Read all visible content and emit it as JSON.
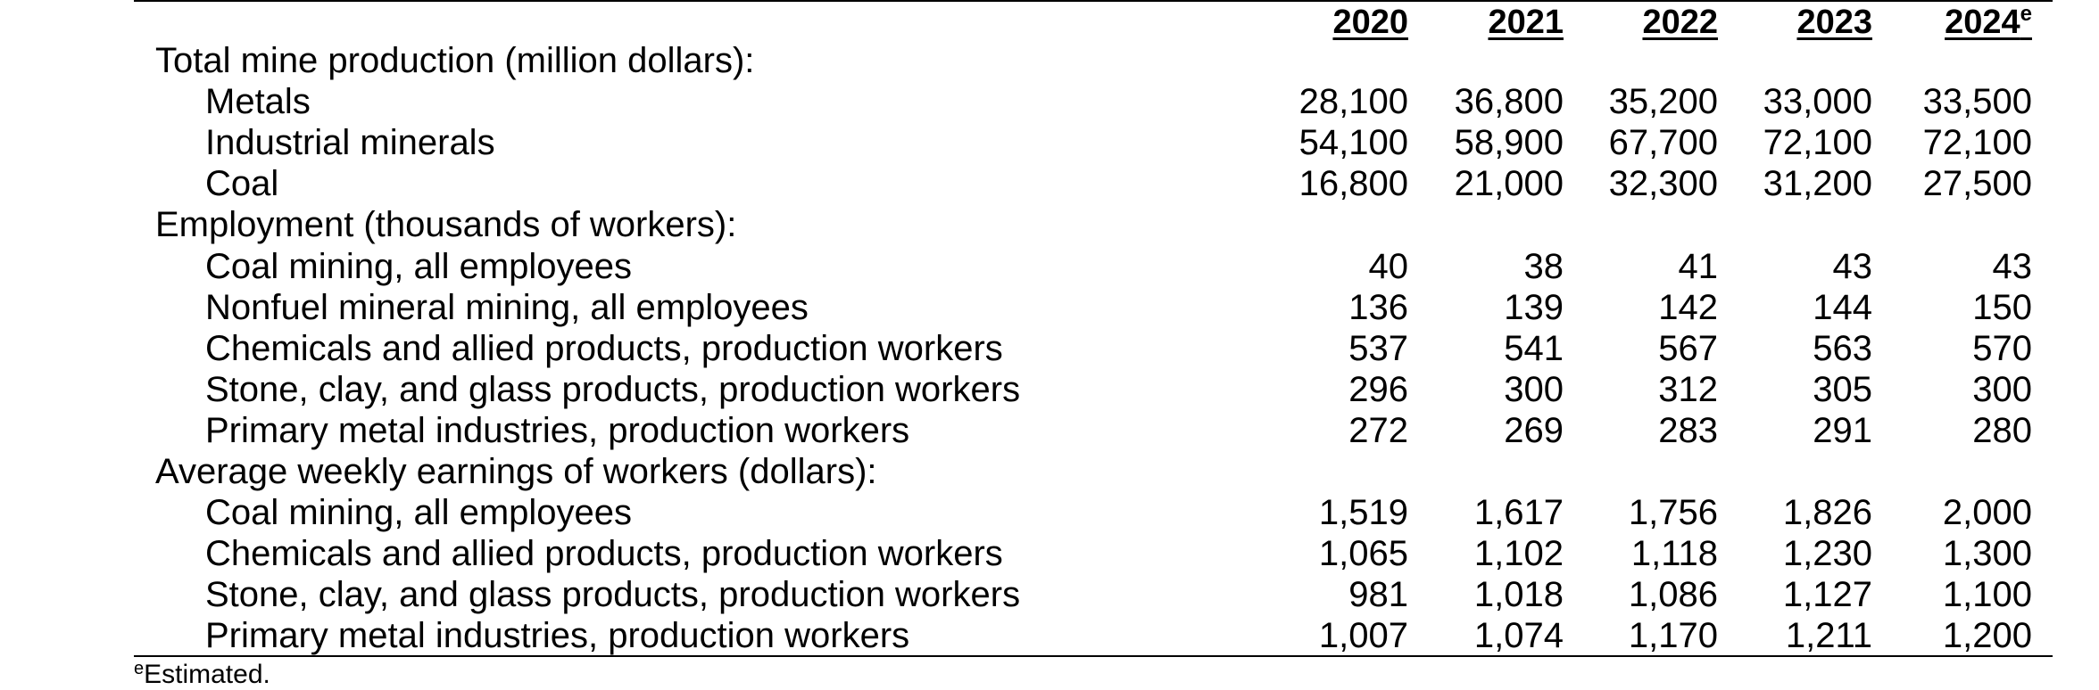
{
  "table": {
    "columns": [
      {
        "label": "2020",
        "sup": ""
      },
      {
        "label": "2021",
        "sup": ""
      },
      {
        "label": "2022",
        "sup": ""
      },
      {
        "label": "2023",
        "sup": ""
      },
      {
        "label": "2024",
        "sup": "e"
      }
    ],
    "rows": [
      {
        "kind": "section",
        "label": "Total mine production (million dollars):",
        "values": []
      },
      {
        "kind": "item",
        "label": "Metals",
        "values": [
          "28,100",
          "36,800",
          "35,200",
          "33,000",
          "33,500"
        ]
      },
      {
        "kind": "item",
        "label": "Industrial minerals",
        "values": [
          "54,100",
          "58,900",
          "67,700",
          "72,100",
          "72,100"
        ]
      },
      {
        "kind": "item",
        "label": "Coal",
        "values": [
          "16,800",
          "21,000",
          "32,300",
          "31,200",
          "27,500"
        ]
      },
      {
        "kind": "section",
        "label": "Employment (thousands of workers):",
        "values": []
      },
      {
        "kind": "item",
        "label": "Coal mining, all employees",
        "values": [
          "40",
          "38",
          "41",
          "43",
          "43"
        ]
      },
      {
        "kind": "item",
        "label": "Nonfuel mineral mining, all employees",
        "values": [
          "136",
          "139",
          "142",
          "144",
          "150"
        ]
      },
      {
        "kind": "item",
        "label": "Chemicals and allied products, production workers",
        "values": [
          "537",
          "541",
          "567",
          "563",
          "570"
        ]
      },
      {
        "kind": "item",
        "label": "Stone, clay, and glass products, production workers",
        "values": [
          "296",
          "300",
          "312",
          "305",
          "300"
        ]
      },
      {
        "kind": "item",
        "label": "Primary metal industries, production workers",
        "values": [
          "272",
          "269",
          "283",
          "291",
          "280"
        ]
      },
      {
        "kind": "section",
        "label": "Average weekly earnings of workers (dollars):",
        "values": []
      },
      {
        "kind": "item",
        "label": "Coal mining, all employees",
        "values": [
          "1,519",
          "1,617",
          "1,756",
          "1,826",
          "2,000"
        ]
      },
      {
        "kind": "item",
        "label": "Chemicals and allied products, production workers",
        "values": [
          "1,065",
          "1,102",
          "1,118",
          "1,230",
          "1,300"
        ]
      },
      {
        "kind": "item",
        "label": "Stone, clay, and glass products, production workers",
        "values": [
          "981",
          "1,018",
          "1,086",
          "1,127",
          "1,100"
        ]
      },
      {
        "kind": "item",
        "label": "Primary metal industries, production workers",
        "values": [
          "1,007",
          "1,074",
          "1,170",
          "1,211",
          "1,200"
        ]
      }
    ]
  },
  "footnote": {
    "marker": "e",
    "text": "Estimated."
  }
}
